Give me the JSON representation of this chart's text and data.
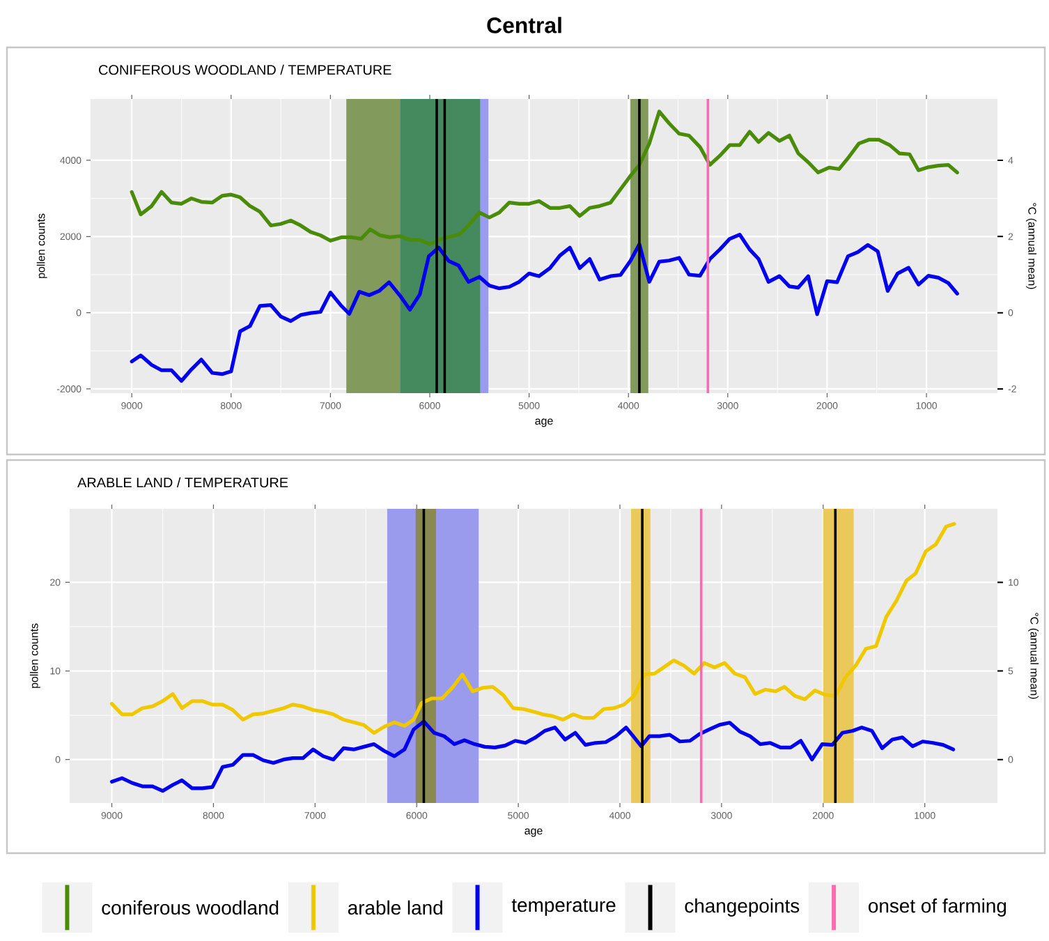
{
  "chart_data": [
    {
      "type": "line",
      "title": "Central",
      "subtitle": "CONIFEROUS WOODLAND / TEMPERATURE",
      "xlabel": "age",
      "ylabel": "pollen counts",
      "y2label": "°C (annual mean)",
      "xlim": [
        9415,
        285
      ],
      "xticks": [
        9000,
        8000,
        7000,
        6000,
        5000,
        4000,
        3000,
        2000,
        1000
      ],
      "ylim": [
        -2110,
        5610
      ],
      "yticks": [
        -2000,
        0,
        2000,
        4000
      ],
      "y2lim": [
        -2.11,
        5.61
      ],
      "y2ticks": [
        -2,
        0,
        2,
        4
      ],
      "grid": true,
      "bands": [
        {
          "axis": "x",
          "from": 6840,
          "to": 6300,
          "color": "#829a5c"
        },
        {
          "axis": "x",
          "from": 6300,
          "to": 5490,
          "color": "#458a5e"
        },
        {
          "axis": "x",
          "from": 5490,
          "to": 5410,
          "color": "#9a9aee"
        },
        {
          "axis": "x",
          "from": 3980,
          "to": 3800,
          "color": "#829a5c"
        }
      ],
      "ref_lines": [
        {
          "axis": "x",
          "value": 5930,
          "color": "#000000"
        },
        {
          "axis": "x",
          "value": 5850,
          "color": "#000000"
        },
        {
          "axis": "x",
          "value": 3890,
          "color": "#000000"
        },
        {
          "axis": "x",
          "value": 3200,
          "color": "#ff69b4"
        }
      ],
      "series": [
        {
          "name": "coniferous woodland",
          "color": "#4a8c0a",
          "x": [
            9000,
            8910,
            8800,
            8700,
            8600,
            8500,
            8400,
            8300,
            8190,
            8090,
            8000,
            7910,
            7810,
            7710,
            7600,
            7500,
            7400,
            7300,
            7200,
            7100,
            7000,
            6890,
            6790,
            6690,
            6600,
            6500,
            6400,
            6300,
            6200,
            6100,
            6000,
            5900,
            5800,
            5700,
            5610,
            5500,
            5400,
            5300,
            5200,
            5100,
            5000,
            4900,
            4790,
            4690,
            4590,
            4490,
            4390,
            4290,
            4180,
            4080,
            3980,
            3890,
            3790,
            3690,
            3590,
            3490,
            3390,
            3280,
            3180,
            3080,
            2980,
            2880,
            2780,
            2690,
            2590,
            2480,
            2380,
            2290,
            2190,
            2090,
            1980,
            1880,
            1780,
            1680,
            1580,
            1480,
            1370,
            1270,
            1170,
            1080,
            980,
            880,
            780,
            690
          ],
          "values": [
            3170,
            2580,
            2800,
            3170,
            2890,
            2860,
            3000,
            2910,
            2890,
            3070,
            3100,
            3030,
            2800,
            2650,
            2290,
            2330,
            2420,
            2290,
            2120,
            2030,
            1890,
            1980,
            1980,
            1940,
            2190,
            2030,
            1980,
            2010,
            1910,
            1910,
            1800,
            1920,
            1990,
            2060,
            2290,
            2630,
            2500,
            2630,
            2890,
            2860,
            2860,
            2930,
            2750,
            2750,
            2800,
            2540,
            2750,
            2800,
            2890,
            3240,
            3590,
            3880,
            4440,
            5280,
            4970,
            4700,
            4650,
            4350,
            3880,
            4120,
            4400,
            4400,
            4750,
            4480,
            4720,
            4510,
            4650,
            4180,
            3950,
            3680,
            3810,
            3770,
            4090,
            4440,
            4540,
            4540,
            4400,
            4180,
            4160,
            3740,
            3820,
            3860,
            3880,
            3680
          ]
        },
        {
          "color": "#0000ee",
          "axis": "y2",
          "x": [
            9000,
            8910,
            8800,
            8700,
            8600,
            8500,
            8400,
            8300,
            8190,
            8090,
            8000,
            7910,
            7810,
            7710,
            7600,
            7500,
            7400,
            7300,
            7200,
            7100,
            7000,
            6890,
            6810,
            6710,
            6610,
            6510,
            6410,
            6300,
            6200,
            6100,
            6010,
            5910,
            5810,
            5710,
            5610,
            5500,
            5400,
            5300,
            5200,
            5100,
            5000,
            4900,
            4790,
            4690,
            4590,
            4490,
            4390,
            4290,
            4180,
            4080,
            3980,
            3890,
            3790,
            3690,
            3590,
            3490,
            3390,
            3280,
            3180,
            3080,
            2980,
            2880,
            2780,
            2690,
            2590,
            2480,
            2380,
            2290,
            2190,
            2100,
            2000,
            1900,
            1790,
            1690,
            1590,
            1490,
            1390,
            1290,
            1180,
            1080,
            980,
            880,
            780,
            690
          ],
          "values": [
            -1.28,
            -1.12,
            -1.37,
            -1.51,
            -1.51,
            -1.79,
            -1.49,
            -1.23,
            -1.58,
            -1.61,
            -1.54,
            -0.49,
            -0.35,
            0.18,
            0.2,
            -0.1,
            -0.22,
            -0.06,
            -0.01,
            0.02,
            0.53,
            0.18,
            -0.03,
            0.55,
            0.46,
            0.57,
            0.8,
            0.45,
            0.08,
            0.48,
            1.48,
            1.71,
            1.36,
            1.24,
            0.81,
            0.94,
            0.71,
            0.64,
            0.68,
            0.81,
            1.03,
            0.96,
            1.17,
            1.5,
            1.71,
            1.17,
            1.41,
            0.87,
            0.96,
            0.99,
            1.36,
            1.8,
            0.81,
            1.34,
            1.37,
            1.44,
            1.0,
            0.97,
            1.41,
            1.66,
            1.94,
            2.05,
            1.66,
            1.41,
            0.81,
            0.96,
            0.69,
            0.66,
            0.96,
            -0.04,
            0.83,
            0.8,
            1.48,
            1.59,
            1.78,
            1.61,
            0.57,
            1.03,
            1.18,
            0.74,
            0.97,
            0.92,
            0.78,
            0.5
          ]
        }
      ]
    },
    {
      "type": "line",
      "title": "ARABLE LAND / TEMPERATURE",
      "xlabel": "age",
      "ylabel": "pollen counts",
      "y2label": "°C (annual mean)",
      "xlim": [
        9415,
        285
      ],
      "xticks": [
        9000,
        8000,
        7000,
        6000,
        5000,
        4000,
        3000,
        2000,
        1000
      ],
      "ylim": [
        -4.9,
        28.3
      ],
      "yticks": [
        0,
        10,
        20
      ],
      "y2lim": [
        -2.45,
        14.15
      ],
      "y2ticks": [
        0,
        5,
        10
      ],
      "grid": true,
      "legend": "bottom",
      "bands": [
        {
          "axis": "x",
          "from": 6290,
          "to": 5390,
          "color": "#9b9bee"
        },
        {
          "axis": "x",
          "from": 6010,
          "to": 5810,
          "color": "#8a8a50"
        },
        {
          "axis": "x",
          "from": 3890,
          "to": 3700,
          "color": "#ebc85a"
        },
        {
          "axis": "x",
          "from": 2000,
          "to": 1700,
          "color": "#ebc85a"
        }
      ],
      "ref_lines": [
        {
          "axis": "x",
          "value": 5930,
          "color": "#000000",
          "label": "changepoints"
        },
        {
          "axis": "x",
          "value": 3780,
          "color": "#000000"
        },
        {
          "axis": "x",
          "value": 1880,
          "color": "#000000"
        },
        {
          "axis": "x",
          "value": 3200,
          "color": "#ff69b4",
          "label": "onset of farming"
        }
      ],
      "series": [
        {
          "name": "arable land",
          "color": "#f0c800",
          "x": [
            9000,
            8900,
            8800,
            8700,
            8600,
            8500,
            8400,
            8310,
            8210,
            8110,
            8010,
            7910,
            7810,
            7710,
            7610,
            7510,
            7410,
            7310,
            7220,
            7120,
            7020,
            6920,
            6820,
            6720,
            6620,
            6520,
            6420,
            6320,
            6220,
            6120,
            6030,
            5950,
            5850,
            5750,
            5650,
            5550,
            5450,
            5350,
            5250,
            5150,
            5050,
            4950,
            4850,
            4760,
            4660,
            4560,
            4460,
            4360,
            4260,
            4160,
            4060,
            3960,
            3860,
            3760,
            3660,
            3570,
            3470,
            3370,
            3270,
            3170,
            3070,
            2970,
            2870,
            2770,
            2670,
            2570,
            2470,
            2380,
            2280,
            2180,
            2080,
            1980,
            1880,
            1780,
            1680,
            1580,
            1480,
            1380,
            1280,
            1180,
            1090,
            990,
            890,
            790,
            710
          ],
          "values": [
            6.3,
            5.1,
            5.1,
            5.8,
            6.0,
            6.6,
            7.4,
            5.8,
            6.6,
            6.6,
            6.2,
            6.2,
            5.6,
            4.5,
            5.1,
            5.2,
            5.5,
            5.8,
            6.2,
            6.0,
            5.6,
            5.4,
            5.1,
            4.5,
            4.2,
            3.9,
            3.0,
            3.7,
            4.2,
            3.8,
            4.5,
            6.4,
            6.9,
            6.9,
            8.1,
            9.6,
            7.7,
            8.1,
            8.2,
            7.3,
            5.8,
            5.7,
            5.4,
            5.1,
            4.9,
            4.5,
            5.1,
            4.7,
            4.7,
            5.7,
            5.8,
            6.2,
            7.2,
            9.6,
            9.7,
            10.4,
            11.2,
            10.6,
            9.7,
            10.9,
            10.4,
            10.9,
            9.7,
            9.3,
            7.4,
            7.9,
            7.7,
            8.2,
            7.2,
            6.8,
            7.8,
            7.3,
            7.2,
            9.3,
            10.6,
            12.5,
            12.8,
            16.1,
            17.9,
            20.2,
            21.0,
            23.5,
            24.3,
            26.3,
            26.6
          ]
        },
        {
          "name": "temperature",
          "color": "#0000ee",
          "axis": "y2",
          "x": [
            9000,
            8900,
            8800,
            8700,
            8600,
            8500,
            8400,
            8310,
            8210,
            8110,
            8010,
            7910,
            7810,
            7710,
            7610,
            7510,
            7410,
            7310,
            7220,
            7120,
            7020,
            6920,
            6820,
            6720,
            6620,
            6520,
            6420,
            6320,
            6220,
            6120,
            6030,
            5930,
            5830,
            5730,
            5630,
            5530,
            5430,
            5330,
            5230,
            5130,
            5030,
            4930,
            4830,
            4740,
            4640,
            4540,
            4440,
            4340,
            4240,
            4140,
            4040,
            3940,
            3860,
            3790,
            3710,
            3610,
            3510,
            3410,
            3310,
            3220,
            3120,
            3020,
            2920,
            2820,
            2720,
            2620,
            2520,
            2420,
            2320,
            2220,
            2110,
            2010,
            1910,
            1810,
            1710,
            1620,
            1520,
            1420,
            1320,
            1220,
            1120,
            1020,
            920,
            820,
            720
          ],
          "values": [
            -1.25,
            -1.05,
            -1.32,
            -1.51,
            -1.51,
            -1.77,
            -1.43,
            -1.17,
            -1.62,
            -1.62,
            -1.55,
            -0.42,
            -0.3,
            0.26,
            0.26,
            -0.04,
            -0.19,
            0.0,
            0.08,
            0.08,
            0.57,
            0.19,
            0.0,
            0.64,
            0.57,
            0.72,
            0.87,
            0.49,
            0.19,
            0.57,
            1.7,
            2.15,
            1.51,
            1.32,
            0.87,
            1.09,
            0.87,
            0.72,
            0.68,
            0.79,
            1.06,
            0.94,
            1.25,
            1.62,
            1.81,
            1.13,
            1.51,
            0.83,
            0.94,
            0.98,
            1.32,
            1.81,
            1.25,
            0.75,
            1.32,
            1.32,
            1.4,
            1.02,
            1.06,
            1.43,
            1.7,
            1.96,
            2.08,
            1.58,
            1.32,
            0.87,
            0.94,
            0.68,
            0.68,
            1.06,
            0.0,
            0.87,
            0.83,
            1.51,
            1.62,
            1.81,
            1.62,
            0.64,
            1.13,
            1.25,
            0.75,
            1.02,
            0.94,
            0.83,
            0.57
          ]
        }
      ]
    }
  ]
}
